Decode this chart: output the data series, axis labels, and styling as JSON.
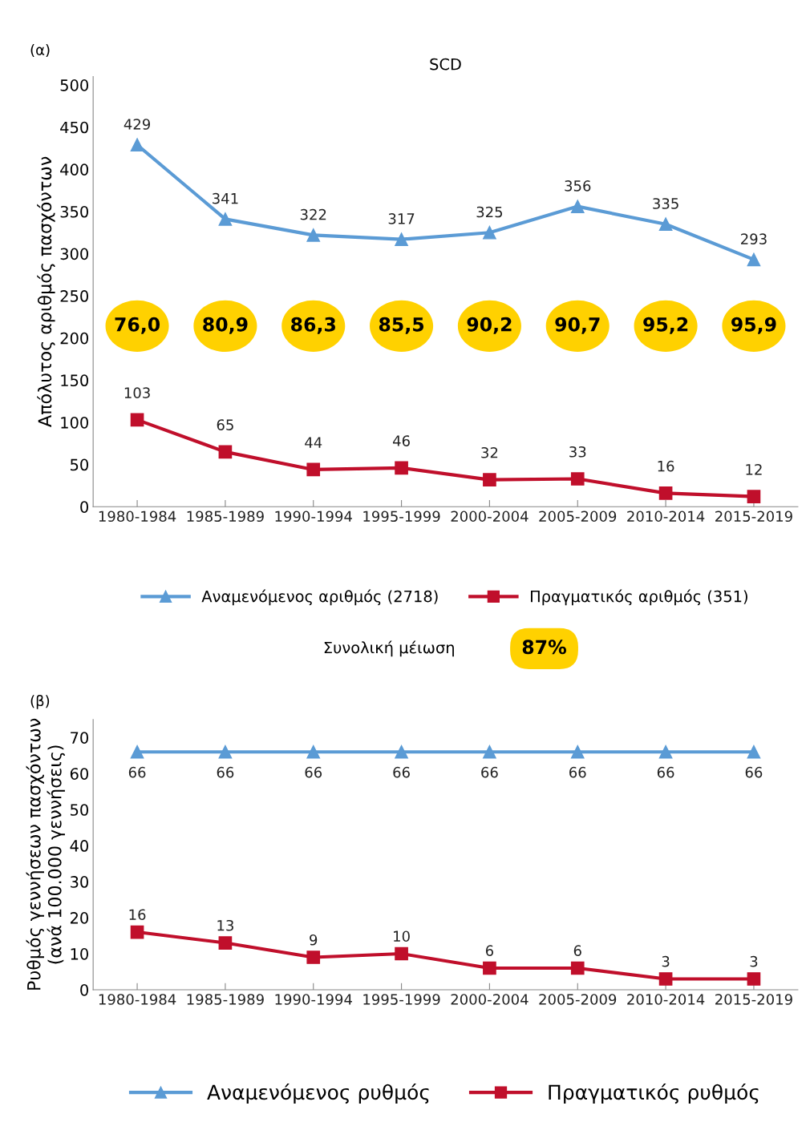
{
  "chart_data": [
    {
      "type": "line",
      "title": "SCD",
      "ylabel": "Απόλυτος αριθμός πασχόντων",
      "categories": [
        "1980-1984",
        "1985-1989",
        "1990-1994",
        "1995-1999",
        "2000-2004",
        "2005-2009",
        "2010-2014",
        "2015-2019"
      ],
      "series": [
        {
          "name": "Αναμενόμενος αριθμός (2718)",
          "color": "#5b9bd5",
          "marker": "triangle",
          "values": [
            429,
            341,
            322,
            317,
            325,
            356,
            335,
            293
          ]
        },
        {
          "name": "Πραγματικός αριθμός (351)",
          "color": "#c00f2b",
          "marker": "square",
          "values": [
            103,
            65,
            44,
            46,
            32,
            33,
            16,
            12
          ]
        }
      ],
      "ylim": [
        0,
        510
      ],
      "yticks": [
        0,
        50,
        100,
        150,
        200,
        250,
        300,
        350,
        400,
        450,
        500
      ],
      "data_labels": true,
      "grid": false,
      "legend": "bottom",
      "line_style": "solid",
      "annotations": [
        "(α)",
        "76,0",
        "80,9",
        "86,3",
        "85,5",
        "90,2",
        "90,7",
        "95,2",
        "95,9",
        "Συνολική μέιωση",
        "87%"
      ]
    },
    {
      "type": "line",
      "ylabel": "Ρυθμός γεννήσεων πασχόντων\n(ανά 100.000 γεννήσεις)",
      "categories": [
        "1980-1984",
        "1985-1989",
        "1990-1994",
        "1995-1999",
        "2000-2004",
        "2005-2009",
        "2010-2014",
        "2015-2019"
      ],
      "series": [
        {
          "name": "Αναμενόμενος ρυθμός",
          "color": "#5b9bd5",
          "marker": "triangle",
          "values": [
            66,
            66,
            66,
            66,
            66,
            66,
            66,
            66
          ]
        },
        {
          "name": "Πραγματικός ρυθμός",
          "color": "#c00f2b",
          "marker": "square",
          "values": [
            16,
            13,
            9,
            10,
            6,
            6,
            3,
            3
          ]
        }
      ],
      "ylim": [
        0,
        75
      ],
      "yticks": [
        0,
        10,
        20,
        30,
        40,
        50,
        60,
        70
      ],
      "data_labels": true,
      "grid": false,
      "legend": "bottom",
      "line_style": "solid",
      "annotations": [
        "(β)"
      ]
    }
  ]
}
